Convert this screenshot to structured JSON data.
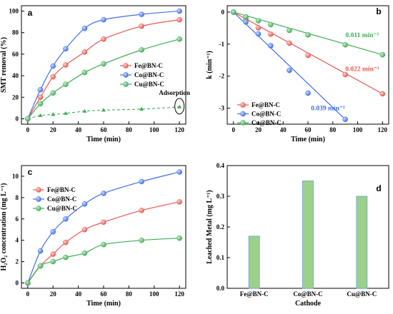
{
  "chart_data": [
    {
      "panel": "a",
      "type": "line",
      "xlabel": "Time (min)",
      "ylabel": "SMT removal (%)",
      "xlim": [
        -5,
        125
      ],
      "ylim": [
        -5,
        105
      ],
      "xticks": [
        0,
        20,
        40,
        60,
        80,
        100,
        120
      ],
      "yticks": [
        0,
        20,
        40,
        60,
        80,
        100
      ],
      "legend_position": "center-right",
      "x": [
        0,
        10,
        20,
        30,
        45,
        60,
        90,
        120
      ],
      "series": [
        {
          "name": "Fe@BN-C",
          "color": "#e8584f",
          "values": [
            0,
            20,
            39,
            50,
            62,
            74,
            86,
            92
          ]
        },
        {
          "name": "Co@BN-C",
          "color": "#3f6fe8",
          "values": [
            0,
            27,
            49,
            65,
            84,
            92,
            97,
            100
          ]
        },
        {
          "name": "Cu@BN-C",
          "color": "#3fae55",
          "values": [
            0,
            14,
            24,
            32,
            43,
            51,
            64,
            74
          ]
        }
      ],
      "adsorption": {
        "label": "Adsorption",
        "color": "#3fae55",
        "x": [
          0,
          10,
          20,
          30,
          45,
          60,
          90,
          120
        ],
        "values": [
          0,
          3,
          4,
          5,
          7,
          8,
          9,
          11
        ]
      }
    },
    {
      "panel": "b",
      "type": "scatter",
      "xlabel": "Time (min)",
      "ylabel": "k (min⁻¹)",
      "xlim": [
        -5,
        125
      ],
      "ylim": [
        -3.5,
        0.2
      ],
      "xticks": [
        0,
        20,
        40,
        60,
        80,
        100,
        120
      ],
      "yticks": [
        0,
        -1,
        -2,
        -3
      ],
      "legend_position": "bottom-left",
      "series": [
        {
          "name": "Fe@BN-C",
          "color": "#e8584f",
          "rate": "0.022 min⁻¹",
          "x": [
            0,
            10,
            20,
            30,
            45,
            60,
            90,
            120
          ],
          "values": [
            0,
            -0.22,
            -0.49,
            -0.69,
            -0.97,
            -1.35,
            -1.95,
            -2.55
          ]
        },
        {
          "name": "Co@BN-C",
          "color": "#3f6fe8",
          "rate": "0.039 min⁻¹",
          "x": [
            0,
            10,
            20,
            30,
            45,
            60,
            90
          ],
          "values": [
            0,
            -0.31,
            -0.68,
            -1.05,
            -1.82,
            -2.53,
            -3.35
          ]
        },
        {
          "name": "Cu@BN-C",
          "color": "#3fae55",
          "rate": "0.011 min⁻¹",
          "x": [
            0,
            10,
            20,
            30,
            45,
            60,
            90,
            120
          ],
          "values": [
            0,
            -0.15,
            -0.27,
            -0.39,
            -0.57,
            -0.71,
            -1.02,
            -1.33
          ]
        }
      ]
    },
    {
      "panel": "c",
      "type": "line",
      "xlabel": "Time (min)",
      "ylabel": "H₂O₂ concentration (mg L⁻¹)",
      "xlim": [
        -5,
        125
      ],
      "ylim": [
        -0.5,
        11
      ],
      "xticks": [
        0,
        20,
        40,
        60,
        80,
        100,
        120
      ],
      "yticks": [
        0,
        2,
        4,
        6,
        8,
        10
      ],
      "legend_position": "top-left",
      "x": [
        0,
        10,
        20,
        30,
        45,
        60,
        90,
        120
      ],
      "series": [
        {
          "name": "Fe@BN-C",
          "color": "#e8584f",
          "values": [
            0,
            1.6,
            2.7,
            3.8,
            5.0,
            5.7,
            6.8,
            7.6
          ]
        },
        {
          "name": "Co@BN-C",
          "color": "#3f6fe8",
          "values": [
            0,
            3.0,
            4.8,
            6.0,
            7.4,
            8.4,
            9.5,
            10.4
          ]
        },
        {
          "name": "Cu@BN-C",
          "color": "#3fae55",
          "values": [
            0,
            1.6,
            2.0,
            2.4,
            2.8,
            3.6,
            4.0,
            4.2
          ]
        }
      ]
    },
    {
      "panel": "d",
      "type": "bar",
      "xlabel": "Cathode",
      "ylabel": "Leached Metal (mg L⁻¹)",
      "ylim": [
        0,
        0.4
      ],
      "yticks": [
        0,
        0.1,
        0.2,
        0.3,
        0.4
      ],
      "ytick_labels": [
        "0.0",
        "0.1",
        "0.2",
        "0.3",
        "0.4"
      ],
      "categories": [
        "Fe@BN-C",
        "Co@BN-C",
        "Cu@BN-C"
      ],
      "values": [
        0.17,
        0.35,
        0.3
      ],
      "bar_color": "#9bd18a",
      "bar_edge": "#6aa0d6"
    }
  ]
}
